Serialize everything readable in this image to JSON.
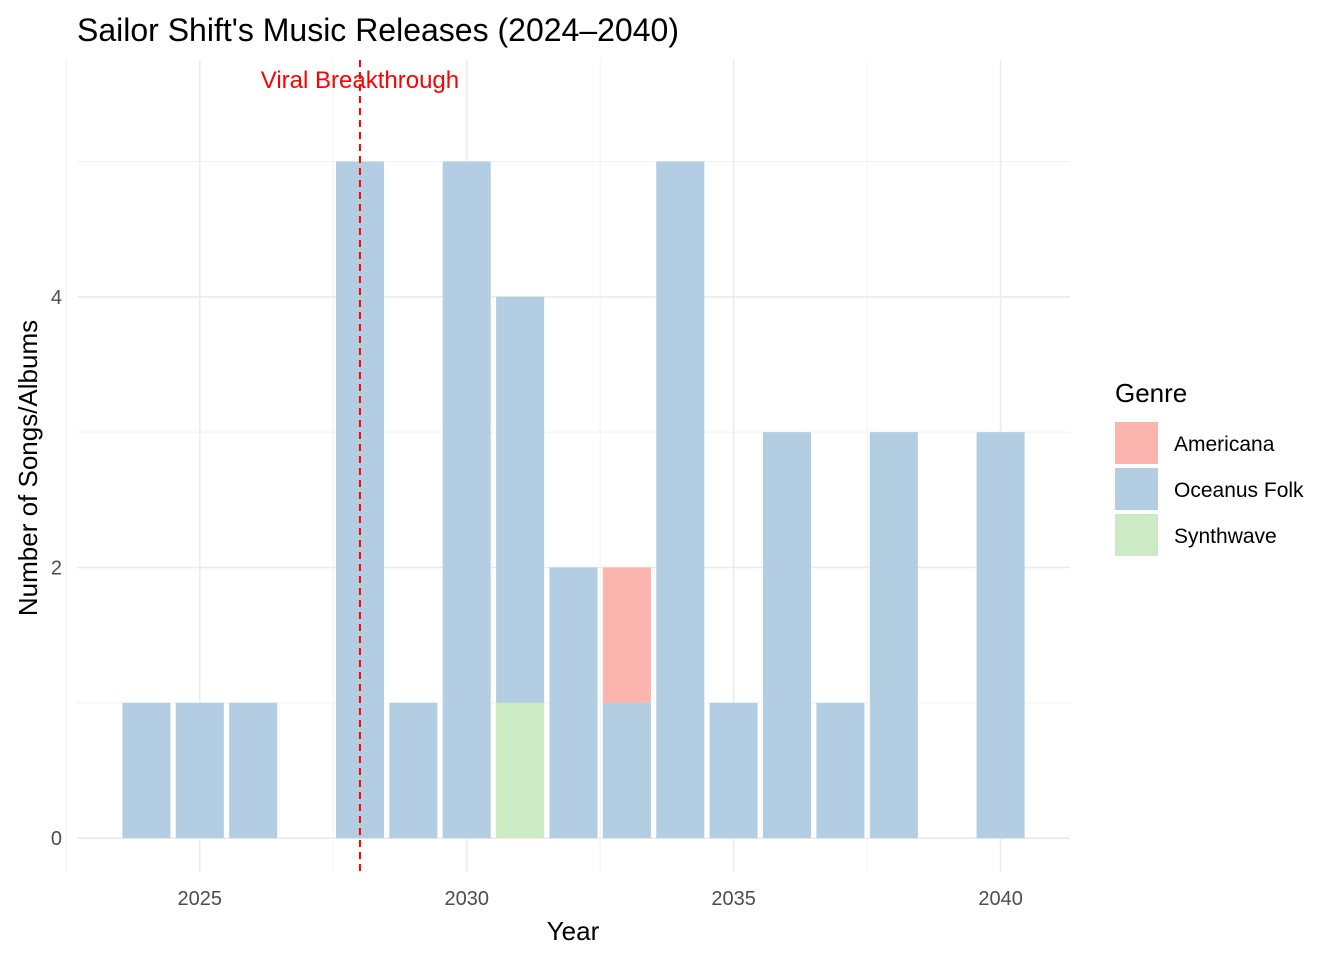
{
  "chart_data": {
    "type": "bar",
    "stacked": true,
    "title": "Sailor Shift's Music Releases (2024–2040)",
    "xlabel": "Year",
    "ylabel": "Number of Songs/Albums",
    "xlim": [
      2022.7,
      2041.3
    ],
    "ylim": [
      -0.25,
      5.75
    ],
    "x_ticks": [
      2025,
      2030,
      2035,
      2040
    ],
    "y_ticks": [
      0,
      2,
      4
    ],
    "grid": true,
    "legend": {
      "title": "Genre",
      "position": "right"
    },
    "x": [
      2024,
      2025,
      2026,
      2027,
      2028,
      2029,
      2030,
      2031,
      2032,
      2033,
      2034,
      2035,
      2036,
      2037,
      2038,
      2039,
      2040
    ],
    "series": [
      {
        "name": "Synthwave",
        "color": "#ccebc5",
        "values": [
          0,
          0,
          0,
          0,
          0,
          0,
          0,
          1,
          0,
          0,
          0,
          0,
          0,
          0,
          0,
          0,
          0
        ]
      },
      {
        "name": "Oceanus Folk",
        "color": "#b3cde3",
        "values": [
          1,
          1,
          1,
          0,
          5,
          1,
          5,
          3,
          2,
          1,
          5,
          1,
          3,
          1,
          3,
          0,
          3
        ]
      },
      {
        "name": "Americana",
        "color": "#fbb4ae",
        "values": [
          0,
          0,
          0,
          0,
          0,
          0,
          0,
          0,
          0,
          1,
          0,
          0,
          0,
          0,
          0,
          0,
          0
        ]
      }
    ],
    "legend_order": [
      "Americana",
      "Oceanus Folk",
      "Synthwave"
    ],
    "annotations": [
      {
        "type": "vline",
        "x": 2028,
        "color": "#ff0000",
        "style": "dashed",
        "label": "Viral Breakthrough"
      }
    ]
  }
}
